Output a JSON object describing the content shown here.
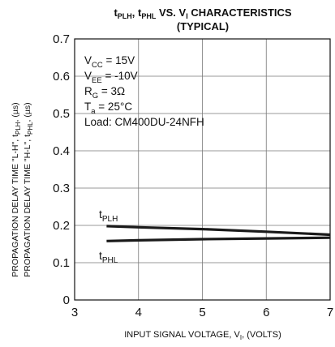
{
  "chart_data": {
    "type": "line",
    "title": {
      "line1": {
        "a": "t",
        "a_sub": "PLH",
        "b": ", t",
        "b_sub": "PHL",
        "c": " VS. V",
        "c_sub": "I",
        "d": " CHARACTERISTICS"
      },
      "line2": "(TYPICAL)"
    },
    "xlabel": {
      "pre": "INPUT SIGNAL VOLTAGE, V",
      "sub": "I",
      "post": ", (VOLTS)"
    },
    "ylabel": {
      "line1": {
        "a": "PROPAGATION DELAY TIME \"L-H\", t",
        "a_sub": "PLH",
        "b": ", (µs)"
      },
      "line2": {
        "a": "PROPAGATION DELAY TIME \"H-L\", t",
        "a_sub": "PHL",
        "b": ", (µs)"
      }
    },
    "xlim": [
      3,
      7
    ],
    "ylim": [
      0,
      0.7
    ],
    "xticks": [
      3,
      4,
      5,
      6,
      7
    ],
    "yticks": [
      0,
      0.1,
      0.2,
      0.3,
      0.4,
      0.5,
      0.6,
      0.7
    ],
    "grid": true,
    "conditions": [
      {
        "pre": "V",
        "sub": "CC",
        "post": " = 15V"
      },
      {
        "pre": "V",
        "sub": "EE",
        "post": " = -10V"
      },
      {
        "pre": "R",
        "sub": "G",
        "post": " = 3Ω"
      },
      {
        "pre": "T",
        "sub": "a",
        "post": " = 25°C"
      },
      {
        "pre": "Load: CM400DU-24NFH",
        "sub": "",
        "post": ""
      }
    ],
    "series": [
      {
        "name": "tPLH",
        "label_main": "t",
        "label_sub": "PLH",
        "x": [
          3.5,
          4,
          5,
          6,
          7
        ],
        "y": [
          0.198,
          0.195,
          0.19,
          0.183,
          0.175
        ]
      },
      {
        "name": "tPHL",
        "label_main": "t",
        "label_sub": "PHL",
        "x": [
          3.5,
          4,
          5,
          6,
          7
        ],
        "y": [
          0.158,
          0.16,
          0.163,
          0.165,
          0.167
        ]
      }
    ],
    "colors": {
      "axis": "#111111",
      "grid": "#777777",
      "series": "#1a1a1a",
      "bg": "#ffffff"
    }
  }
}
